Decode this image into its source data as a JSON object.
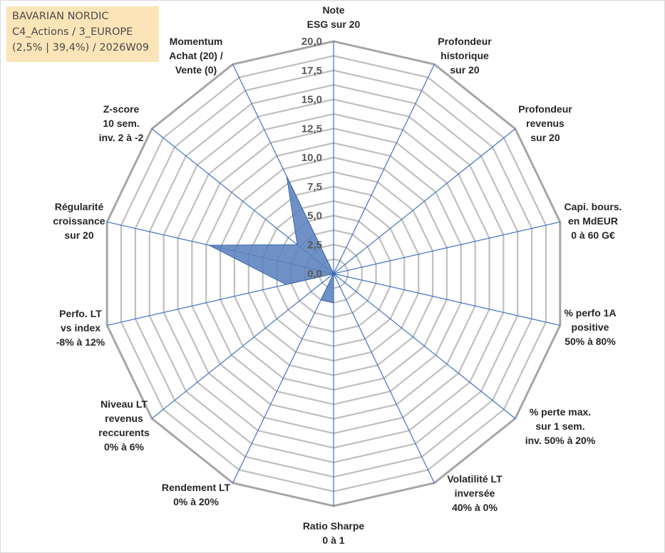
{
  "header": {
    "line1": "BAVARIAN NORDIC",
    "line2": "C4_Actions / 3_EUROPE",
    "line3": "(2,5% | 39,4%) / 2026W09"
  },
  "chart_data": {
    "type": "radar",
    "title": "BAVARIAN NORDIC",
    "rmin": 0,
    "rmax": 20,
    "ticks": [
      "0,0",
      "2,5",
      "5,0",
      "7,5",
      "10,0",
      "12,5",
      "15,0",
      "17,5",
      "20,0"
    ],
    "tick_values": [
      0,
      2.5,
      5,
      7.5,
      10,
      12.5,
      15,
      17.5,
      20
    ],
    "grid_rings": [
      1.25,
      2.5,
      3.75,
      5,
      6.25,
      7.5,
      8.75,
      10,
      11.25,
      12.5,
      13.75,
      15,
      16.25,
      17.5,
      18.75,
      20
    ],
    "axes": [
      {
        "label": [
          "Note",
          "ESG sur 20"
        ],
        "value": 0
      },
      {
        "label": [
          "Profondeur",
          "historique",
          "sur 20"
        ],
        "value": 0
      },
      {
        "label": [
          "Profondeur",
          "revenus",
          "sur 20"
        ],
        "value": 0
      },
      {
        "label": [
          "Capi. bours.",
          "en MdEUR",
          "0 à 60 G€"
        ],
        "value": 0
      },
      {
        "label": [
          "% perfo 1A",
          "positive",
          "50% à 80%"
        ],
        "value": 0.5
      },
      {
        "label": [
          "% perte max.",
          "sur 1 sem.",
          "inv. 50% à 20%"
        ],
        "value": 0
      },
      {
        "label": [
          "Volatilité LT",
          "inversée",
          "40% à 0%"
        ],
        "value": 0
      },
      {
        "label": [
          "Ratio Sharpe",
          "0 à 1"
        ],
        "value": 2.5
      },
      {
        "label": [
          "Rendement LT",
          "0% à 20%"
        ],
        "value": 2.5
      },
      {
        "label": [
          "Niveau LT",
          "revenus",
          "reccurents",
          "0% à 6%"
        ],
        "value": 0
      },
      {
        "label": [
          "Perfo. LT",
          "vs index",
          "-8% à 12%"
        ],
        "value": 4.2
      },
      {
        "label": [
          "Régularité",
          "croissance",
          "sur 20"
        ],
        "value": 11
      },
      {
        "label": [
          "Z-score",
          "10 sem.",
          "inv. 2 à -2"
        ],
        "value": 4
      },
      {
        "label": [
          "Momentum",
          "Achat (20) /",
          "Vente (0)"
        ],
        "value": 9.3
      }
    ],
    "colors": {
      "fill": "#5b82bd",
      "stroke": "#3f68a8",
      "spoke": "#4472c4",
      "grid": "#bfbfbf",
      "outer": "#a6a6a6"
    }
  }
}
